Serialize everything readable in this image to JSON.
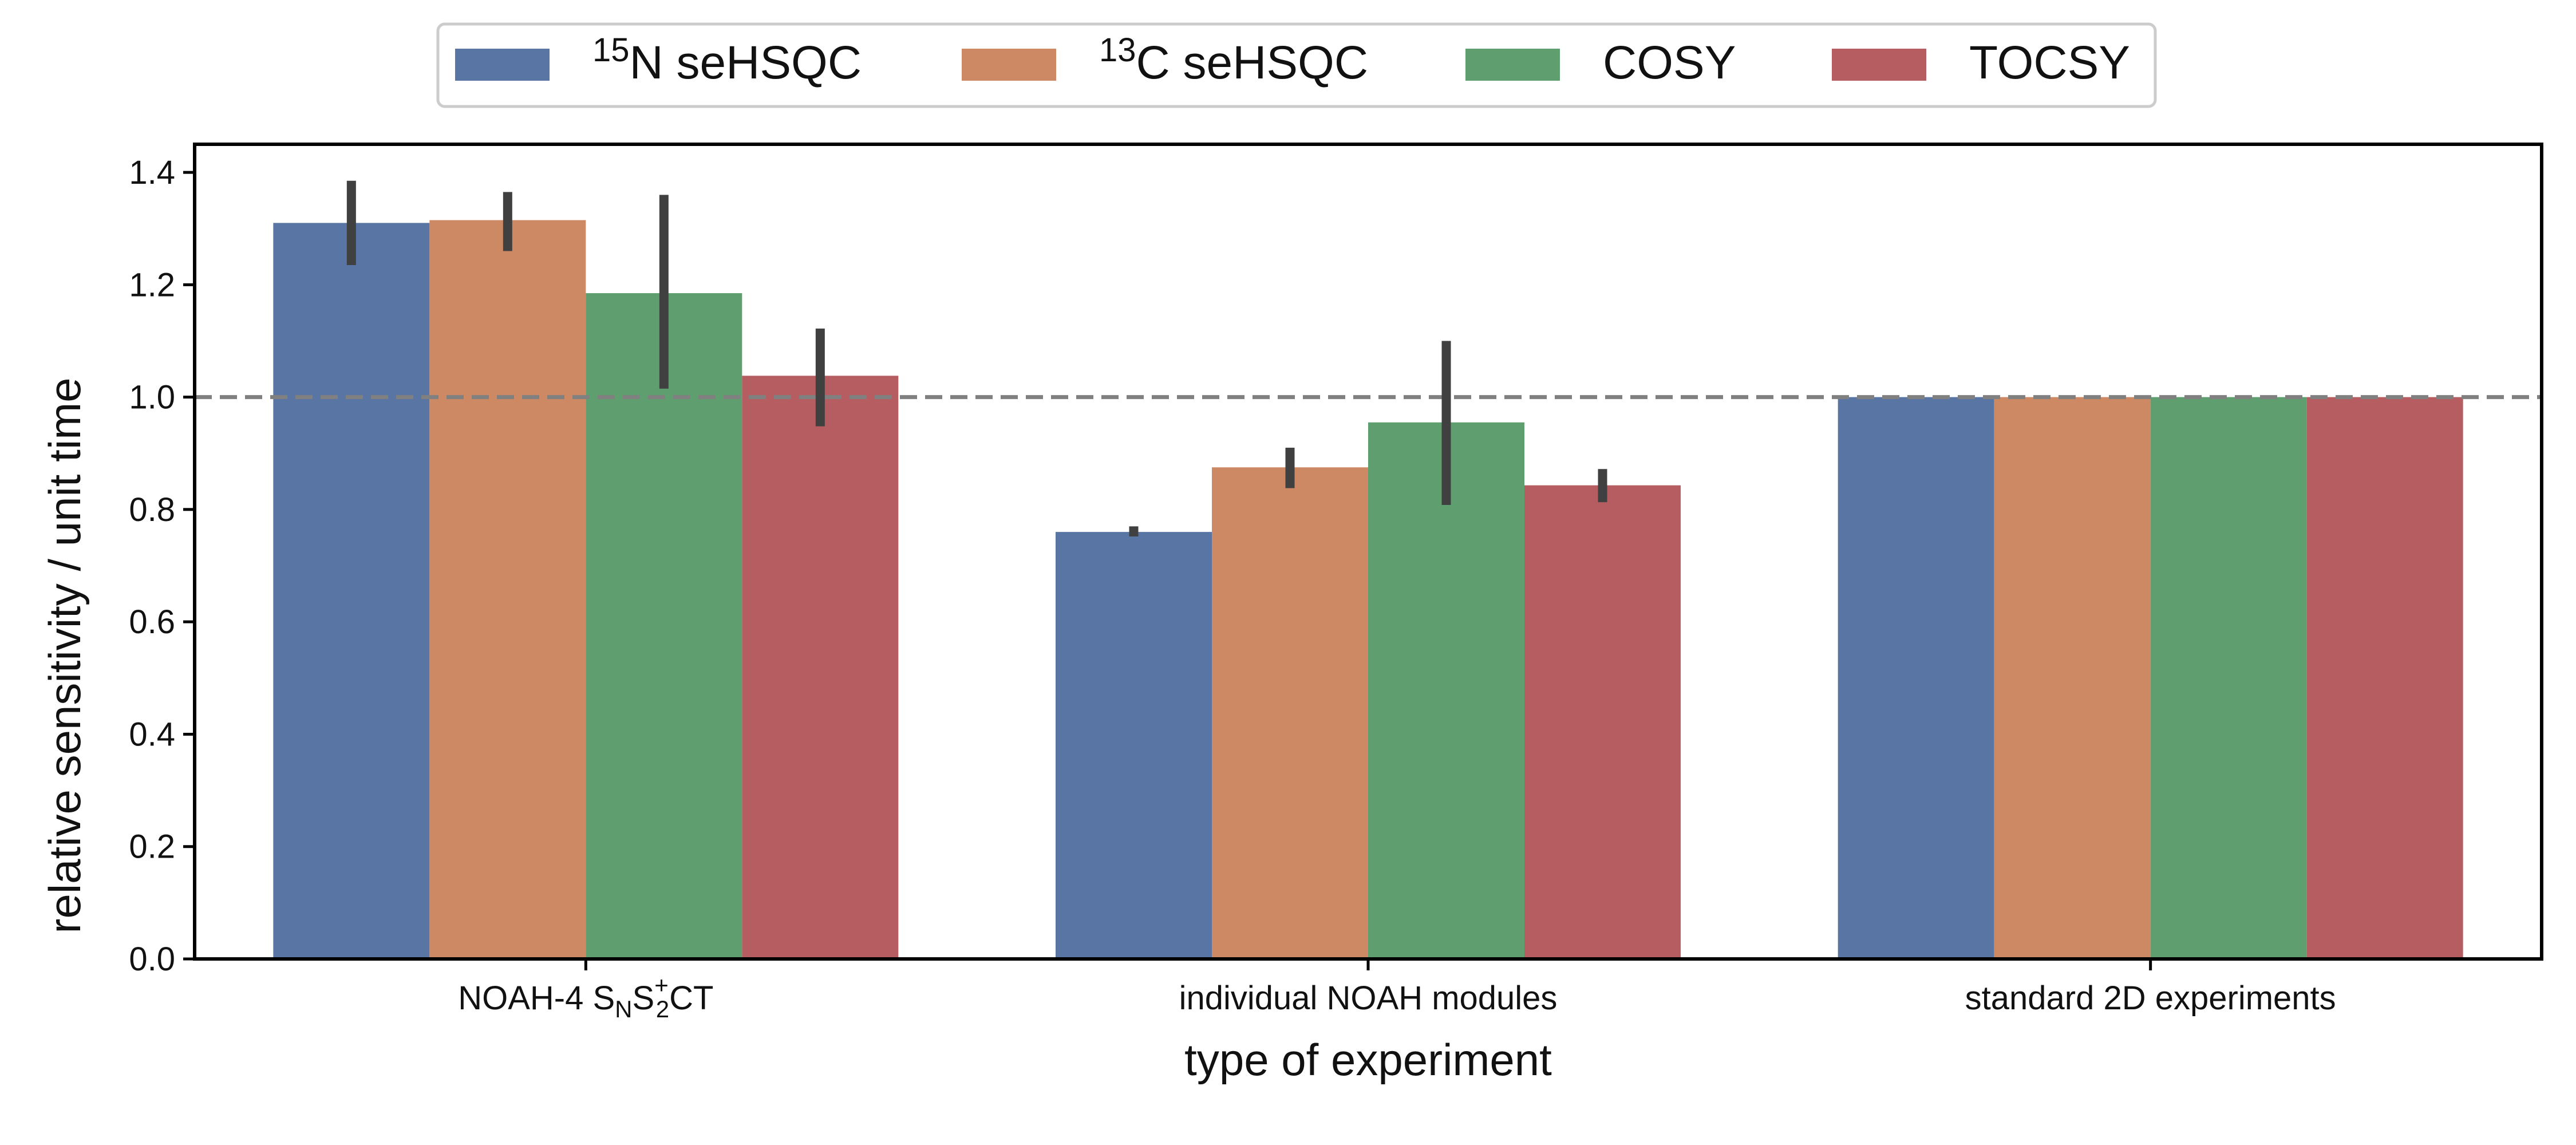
{
  "colors": {
    "15N seHSQC": "#5975a4",
    "13C seHSQC": "#cc8963",
    "COSY": "#5f9e6e",
    "TOCSY": "#b55d60",
    "error_bar": "#404040",
    "reference_line": "#808080"
  },
  "chart_data": {
    "type": "bar",
    "xlabel": "type of experiment",
    "ylabel": "relative sensitivity / unit time",
    "ylim": [
      0,
      1.45
    ],
    "yticks": [
      "0.0",
      "0.2",
      "0.4",
      "0.6",
      "0.8",
      "1.0",
      "1.2",
      "1.4"
    ],
    "legend_position": "top-center",
    "categories": [
      {
        "main": "NOAH-4 S",
        "sub1": "N",
        "mid": "S",
        "sup": "+",
        "sub2": "2",
        "tail": "CT"
      },
      {
        "main": "individual NOAH modules"
      },
      {
        "main": "standard 2D experiments"
      }
    ],
    "series": [
      {
        "name": "15N seHSQC",
        "legend": {
          "sup": "15",
          "text": "N seHSQC"
        },
        "values": [
          1.31,
          0.76,
          1.0
        ],
        "err_low": [
          1.235,
          0.752,
          null
        ],
        "err_high": [
          1.385,
          0.77,
          null
        ]
      },
      {
        "name": "13C seHSQC",
        "legend": {
          "sup": "13",
          "text": "C seHSQC"
        },
        "values": [
          1.315,
          0.875,
          1.0
        ],
        "err_low": [
          1.26,
          0.838,
          null
        ],
        "err_high": [
          1.365,
          0.91,
          null
        ]
      },
      {
        "name": "COSY",
        "legend": {
          "sup": "",
          "text": "COSY"
        },
        "values": [
          1.185,
          0.955,
          1.0
        ],
        "err_low": [
          1.015,
          0.808,
          null
        ],
        "err_high": [
          1.36,
          1.1,
          null
        ]
      },
      {
        "name": "TOCSY",
        "legend": {
          "sup": "",
          "text": "TOCSY"
        },
        "values": [
          1.038,
          0.843,
          1.0
        ],
        "err_low": [
          0.948,
          0.813,
          null
        ],
        "err_high": [
          1.122,
          0.872,
          null
        ]
      }
    ],
    "reference_line": 1.0
  }
}
